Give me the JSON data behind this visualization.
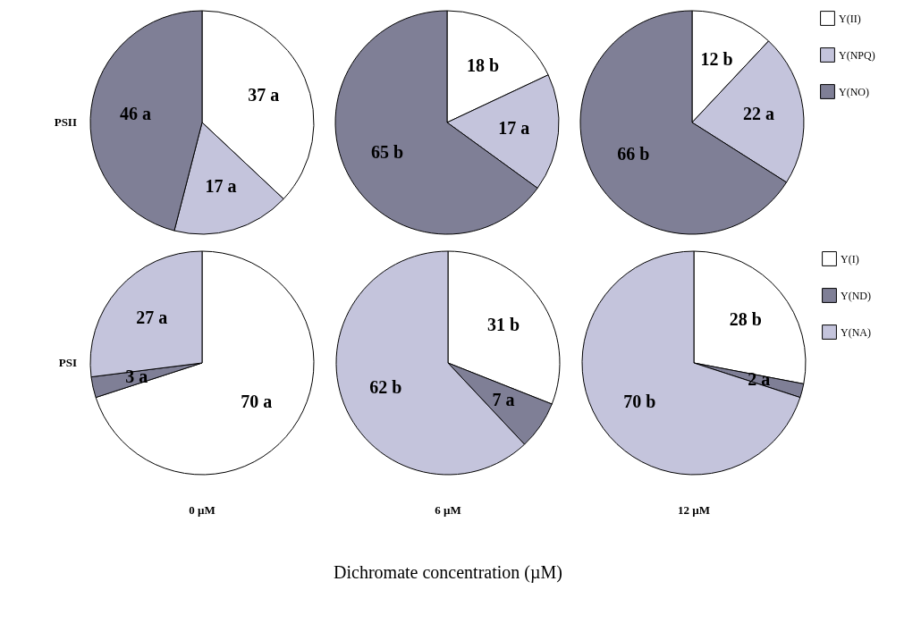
{
  "chart_data": [
    {
      "type": "pie",
      "ylabel": "PSII",
      "categories": [
        null,
        null,
        null
      ],
      "values": [
        37,
        17,
        46
      ],
      "colors": [
        "#ffffff",
        "#c4c4dc",
        "#7f7f96"
      ],
      "value_labels": [
        "37 a",
        "17 a",
        "46 a"
      ]
    },
    {
      "type": "pie",
      "categories": [
        null,
        null,
        null
      ],
      "values": [
        18,
        17,
        65
      ],
      "colors": [
        "#ffffff",
        "#c4c4dc",
        "#7f7f96"
      ],
      "value_labels": [
        "18 b",
        "17 a",
        "65 b"
      ]
    },
    {
      "type": "pie",
      "categories": [
        "Y(II)",
        "Y(NPQ)",
        "Y(NO)"
      ],
      "values": [
        12,
        22,
        66
      ],
      "colors": [
        "#ffffff",
        "#c4c4dc",
        "#7f7f96"
      ],
      "value_labels": [
        "12 b",
        "22 a",
        "66 b"
      ],
      "legend": "right"
    },
    {
      "type": "pie",
      "ylabel": "PSI",
      "xlabel": "0 µM",
      "categories": [
        null,
        null,
        null
      ],
      "values": [
        70,
        3,
        27
      ],
      "colors": [
        "#ffffff",
        "#7f7f96",
        "#c4c4dc"
      ],
      "value_labels": [
        "70 a",
        "3 a",
        "27 a"
      ]
    },
    {
      "type": "pie",
      "xlabel": "6 µM",
      "categories": [
        null,
        null,
        null
      ],
      "values": [
        31,
        7,
        62
      ],
      "colors": [
        "#ffffff",
        "#7f7f96",
        "#c4c4dc"
      ],
      "value_labels": [
        "31 b",
        "7 a",
        "62 b"
      ],
      "annotations": [
        "Dichromate concentration (µM)"
      ]
    },
    {
      "type": "pie",
      "xlabel": "12 µM",
      "categories": [
        "Y(I)",
        "Y(ND)",
        "Y(NA)"
      ],
      "values": [
        28,
        2,
        70
      ],
      "colors": [
        "#ffffff",
        "#7f7f96",
        "#c4c4dc"
      ],
      "value_labels": [
        "28 b",
        "2 a",
        "70 b"
      ],
      "legend": "right"
    }
  ]
}
